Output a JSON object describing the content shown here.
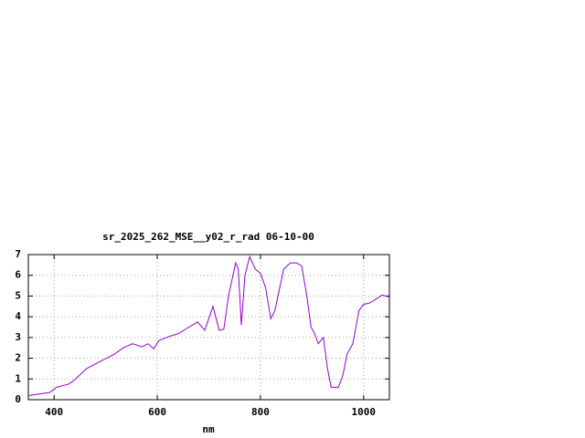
{
  "chart_data": {
    "type": "line",
    "title": "sr_2025_262_MSE__y02_r_rad 06-10-00",
    "xlabel": "nm",
    "xlim": [
      350,
      1050
    ],
    "xticks": [
      400,
      600,
      800,
      1000
    ],
    "ylim": [
      0,
      7
    ],
    "yticks": [
      0,
      1,
      2,
      3,
      4,
      5,
      6,
      7
    ],
    "grid": true,
    "series": [
      {
        "name": null,
        "color": "#9400d3",
        "x": [
          350,
          392,
          405,
          428,
          437,
          463,
          490,
          517,
          534,
          552,
          570,
          582,
          593,
          603,
          623,
          642,
          658,
          678,
          692,
          708,
          720,
          729,
          738,
          752,
          757,
          763,
          770,
          779,
          790,
          800,
          810,
          820,
          828,
          845,
          858,
          870,
          880,
          890,
          898,
          905,
          912,
          922,
          930,
          937,
          951,
          960,
          968,
          979,
          991,
          1000,
          1010,
          1021,
          1036,
          1050
        ],
        "values": [
          0.2,
          0.35,
          0.6,
          0.75,
          0.9,
          1.5,
          1.85,
          2.2,
          2.5,
          2.7,
          2.55,
          2.7,
          2.45,
          2.85,
          3.05,
          3.2,
          3.45,
          3.75,
          3.35,
          4.5,
          3.35,
          3.4,
          5.0,
          6.6,
          6.3,
          3.6,
          6.0,
          6.9,
          6.3,
          6.1,
          5.4,
          3.9,
          4.3,
          6.3,
          6.6,
          6.6,
          6.45,
          5.0,
          3.5,
          3.2,
          2.7,
          3.0,
          1.5,
          0.6,
          0.6,
          1.2,
          2.2,
          2.7,
          4.3,
          4.6,
          4.65,
          4.8,
          5.05,
          4.95
        ]
      }
    ]
  }
}
